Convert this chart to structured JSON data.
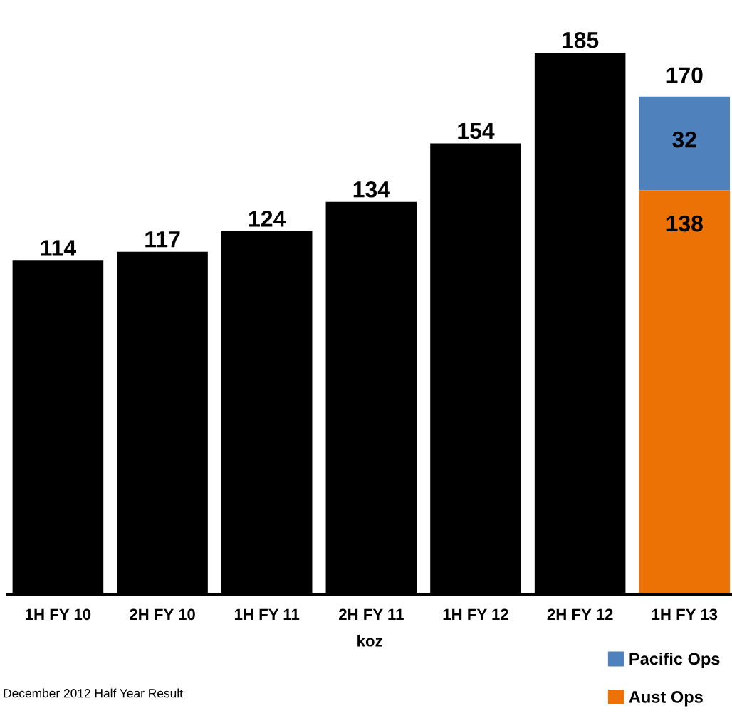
{
  "chart_data": {
    "type": "bar",
    "stacked": true,
    "data_labels": true,
    "tick_labels": "x",
    "grid": false,
    "legend": "bottom right",
    "xlabel": "koz",
    "categories": [
      "1H FY 10",
      "2H FY 10",
      "1H FY 11",
      "2H FY 11",
      "1H FY 12",
      "2H FY 12",
      "1H FY 13"
    ],
    "series": [
      {
        "color": "#000000",
        "values": [
          114,
          117,
          124,
          134,
          154,
          185,
          null
        ]
      },
      {
        "name": "Aust Ops",
        "color": "#ed7206",
        "values": [
          null,
          null,
          null,
          null,
          null,
          null,
          138
        ]
      },
      {
        "name": "Pacific Ops",
        "color": "#4f81bd",
        "values": [
          null,
          null,
          null,
          null,
          null,
          null,
          32
        ]
      }
    ],
    "totals": [
      null,
      null,
      null,
      null,
      null,
      null,
      "170"
    ],
    "annotations": [
      "December 2012 Half Year Result"
    ]
  }
}
